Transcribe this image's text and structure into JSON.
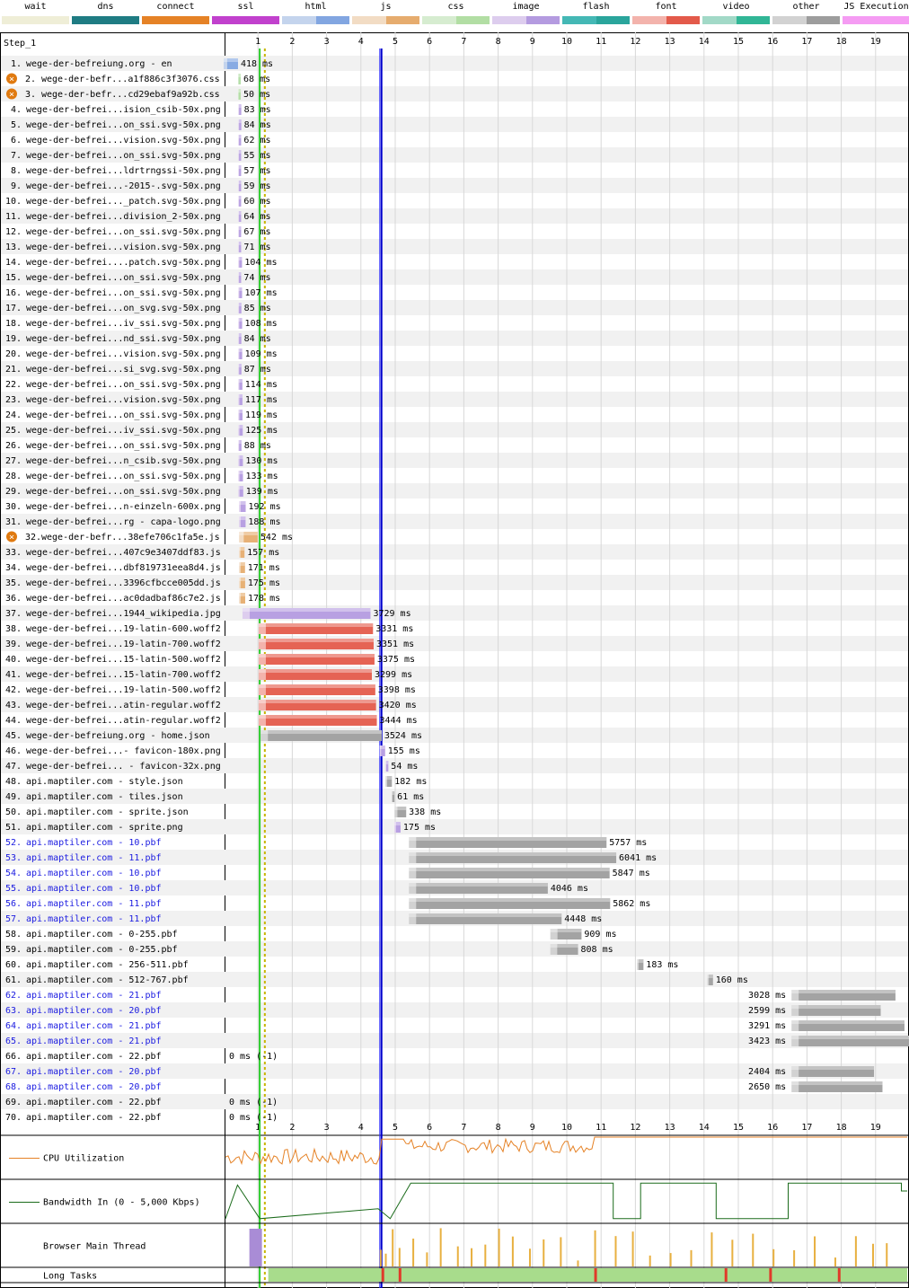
{
  "legend": [
    {
      "label": "wait",
      "color": "#efeed7",
      "color2": "#efeed7"
    },
    {
      "label": "dns",
      "color": "#1f7c83",
      "color2": "#1f7c83"
    },
    {
      "label": "connect",
      "color": "#e58226",
      "color2": "#e58226"
    },
    {
      "label": "ssl",
      "color": "#c141cd",
      "color2": "#c141cd"
    },
    {
      "label": "html",
      "color": "#c4d4ed",
      "color2": "#82a6e1"
    },
    {
      "label": "js",
      "color": "#f2dcc4",
      "color2": "#e6ac6e"
    },
    {
      "label": "css",
      "color": "#d6ecd0",
      "color2": "#b2dea4"
    },
    {
      "label": "image",
      "color": "#ddcdee",
      "color2": "#b49be0"
    },
    {
      "label": "flash",
      "color": "#44b8b5",
      "color2": "#2aa59c"
    },
    {
      "label": "font",
      "color": "#f3b3ac",
      "color2": "#e35a4a"
    },
    {
      "label": "video",
      "color": "#a2d9c7",
      "color2": "#31b696"
    },
    {
      "label": "other",
      "color": "#d2d2d2",
      "color2": "#9d9d9d"
    },
    {
      "label": "JS Execution",
      "color": "#f59cf3",
      "color2": "#f59cf3"
    }
  ],
  "step_label": "Step_1",
  "timeline_ticks": [
    "1",
    "2",
    "3",
    "4",
    "5",
    "6",
    "7",
    "8",
    "9",
    "10",
    "11",
    "12",
    "13",
    "14",
    "15",
    "16",
    "17",
    "18",
    "19"
  ],
  "requests": [
    {
      "num": "1.",
      "label": "wege-der-befreiung.org - en",
      "start": 0.0,
      "dur": 418,
      "type": "html",
      "ms": "418 ms"
    },
    {
      "num": "2.",
      "label": "wege-der-befr...a1f886c3f3076.css",
      "start": 0.42,
      "dur": 68,
      "type": "css",
      "ms": "68 ms",
      "warn": true
    },
    {
      "num": "3.",
      "label": "wege-der-befr...cd29ebaf9a92b.css",
      "start": 0.42,
      "dur": 50,
      "type": "css",
      "ms": "50 ms",
      "warn": true
    },
    {
      "num": "4.",
      "label": "wege-der-befrei...ision_csib-50x.png",
      "start": 0.43,
      "dur": 83,
      "type": "image",
      "ms": "83 ms"
    },
    {
      "num": "5.",
      "label": "wege-der-befrei...on_ssi.svg-50x.png",
      "start": 0.43,
      "dur": 84,
      "type": "image",
      "ms": "84 ms"
    },
    {
      "num": "6.",
      "label": "wege-der-befrei...vision.svg-50x.png",
      "start": 0.43,
      "dur": 62,
      "type": "image",
      "ms": "62 ms"
    },
    {
      "num": "7.",
      "label": "wege-der-befrei...on_ssi.svg-50x.png",
      "start": 0.43,
      "dur": 55,
      "type": "image",
      "ms": "55 ms"
    },
    {
      "num": "8.",
      "label": "wege-der-befrei...ldrtrngssi-50x.png",
      "start": 0.43,
      "dur": 57,
      "type": "image",
      "ms": "57 ms"
    },
    {
      "num": "9.",
      "label": "wege-der-befrei...-2015-.svg-50x.png",
      "start": 0.43,
      "dur": 59,
      "type": "image",
      "ms": "59 ms"
    },
    {
      "num": "10.",
      "label": "wege-der-befrei..._patch.svg-50x.png",
      "start": 0.43,
      "dur": 60,
      "type": "image",
      "ms": "60 ms"
    },
    {
      "num": "11.",
      "label": "wege-der-befrei...division_2-50x.png",
      "start": 0.43,
      "dur": 64,
      "type": "image",
      "ms": "64 ms"
    },
    {
      "num": "12.",
      "label": "wege-der-befrei...on_ssi.svg-50x.png",
      "start": 0.43,
      "dur": 67,
      "type": "image",
      "ms": "67 ms"
    },
    {
      "num": "13.",
      "label": "wege-der-befrei...vision.svg-50x.png",
      "start": 0.43,
      "dur": 71,
      "type": "image",
      "ms": "71 ms"
    },
    {
      "num": "14.",
      "label": "wege-der-befrei....patch.svg-50x.png",
      "start": 0.43,
      "dur": 104,
      "type": "image",
      "ms": "104 ms"
    },
    {
      "num": "15.",
      "label": "wege-der-befrei...on_ssi.svg-50x.png",
      "start": 0.43,
      "dur": 74,
      "type": "image",
      "ms": "74 ms"
    },
    {
      "num": "16.",
      "label": "wege-der-befrei...on_ssi.svg-50x.png",
      "start": 0.43,
      "dur": 107,
      "type": "image",
      "ms": "107 ms"
    },
    {
      "num": "17.",
      "label": "wege-der-befrei...on_svg.svg-50x.png",
      "start": 0.43,
      "dur": 85,
      "type": "image",
      "ms": "85 ms"
    },
    {
      "num": "18.",
      "label": "wege-der-befrei...iv_ssi.svg-50x.png",
      "start": 0.43,
      "dur": 108,
      "type": "image",
      "ms": "108 ms"
    },
    {
      "num": "19.",
      "label": "wege-der-befrei...nd_ssi.svg-50x.png",
      "start": 0.43,
      "dur": 84,
      "type": "image",
      "ms": "84 ms"
    },
    {
      "num": "20.",
      "label": "wege-der-befrei...vision.svg-50x.png",
      "start": 0.43,
      "dur": 109,
      "type": "image",
      "ms": "109 ms"
    },
    {
      "num": "21.",
      "label": "wege-der-befrei...si_svg.svg-50x.png",
      "start": 0.43,
      "dur": 87,
      "type": "image",
      "ms": "87 ms"
    },
    {
      "num": "22.",
      "label": "wege-der-befrei...on_ssi.svg-50x.png",
      "start": 0.43,
      "dur": 114,
      "type": "image",
      "ms": "114 ms"
    },
    {
      "num": "23.",
      "label": "wege-der-befrei...vision.svg-50x.png",
      "start": 0.43,
      "dur": 117,
      "type": "image",
      "ms": "117 ms"
    },
    {
      "num": "24.",
      "label": "wege-der-befrei...on_ssi.svg-50x.png",
      "start": 0.43,
      "dur": 119,
      "type": "image",
      "ms": "119 ms"
    },
    {
      "num": "25.",
      "label": "wege-der-befrei...iv_ssi.svg-50x.png",
      "start": 0.43,
      "dur": 125,
      "type": "image",
      "ms": "125 ms"
    },
    {
      "num": "26.",
      "label": "wege-der-befrei...on_ssi.svg-50x.png",
      "start": 0.43,
      "dur": 88,
      "type": "image",
      "ms": "88 ms"
    },
    {
      "num": "27.",
      "label": "wege-der-befrei...n_csib.svg-50x.png",
      "start": 0.43,
      "dur": 130,
      "type": "image",
      "ms": "130 ms"
    },
    {
      "num": "28.",
      "label": "wege-der-befrei...on_ssi.svg-50x.png",
      "start": 0.43,
      "dur": 133,
      "type": "image",
      "ms": "133 ms"
    },
    {
      "num": "29.",
      "label": "wege-der-befrei...on_ssi.svg-50x.png",
      "start": 0.43,
      "dur": 139,
      "type": "image",
      "ms": "139 ms"
    },
    {
      "num": "30.",
      "label": "wege-der-befrei...n-einzeln-600x.png",
      "start": 0.45,
      "dur": 192,
      "type": "image",
      "ms": "192 ms"
    },
    {
      "num": "31.",
      "label": "wege-der-befrei...rg - capa-logo.png",
      "start": 0.45,
      "dur": 188,
      "type": "image",
      "ms": "188 ms"
    },
    {
      "num": "32.",
      "label": "wege-der-befr...38efe706c1fa5e.js",
      "start": 0.45,
      "dur": 542,
      "type": "js",
      "ms": "542 ms",
      "warn": true
    },
    {
      "num": "33.",
      "label": "wege-der-befrei...407c9e3407ddf83.js",
      "start": 0.45,
      "dur": 157,
      "type": "js",
      "ms": "157 ms"
    },
    {
      "num": "34.",
      "label": "wege-der-befrei...dbf819731eea8d4.js",
      "start": 0.45,
      "dur": 171,
      "type": "js",
      "ms": "171 ms"
    },
    {
      "num": "35.",
      "label": "wege-der-befrei...3396cfbcce005dd.js",
      "start": 0.45,
      "dur": 175,
      "type": "js",
      "ms": "175 ms"
    },
    {
      "num": "36.",
      "label": "wege-der-befrei...ac0dadbaf86c7e2.js",
      "start": 0.45,
      "dur": 178,
      "type": "js",
      "ms": "178 ms"
    },
    {
      "num": "37.",
      "label": "wege-der-befrei...1944_wikipedia.jpg",
      "start": 0.55,
      "dur": 3729,
      "type": "image",
      "ms": "3729 ms"
    },
    {
      "num": "38.",
      "label": "wege-der-befrei...19-latin-600.woff2",
      "start": 1.02,
      "dur": 3331,
      "type": "font",
      "ms": "3331 ms"
    },
    {
      "num": "39.",
      "label": "wege-der-befrei...19-latin-700.woff2",
      "start": 1.02,
      "dur": 3351,
      "type": "font",
      "ms": "3351 ms"
    },
    {
      "num": "40.",
      "label": "wege-der-befrei...15-latin-500.woff2",
      "start": 1.02,
      "dur": 3375,
      "type": "font",
      "ms": "3375 ms"
    },
    {
      "num": "41.",
      "label": "wege-der-befrei...15-latin-700.woff2",
      "start": 1.02,
      "dur": 3299,
      "type": "font",
      "ms": "3299 ms"
    },
    {
      "num": "42.",
      "label": "wege-der-befrei...19-latin-500.woff2",
      "start": 1.02,
      "dur": 3398,
      "type": "font",
      "ms": "3398 ms"
    },
    {
      "num": "43.",
      "label": "wege-der-befrei...atin-regular.woff2",
      "start": 1.02,
      "dur": 3420,
      "type": "font",
      "ms": "3420 ms"
    },
    {
      "num": "44.",
      "label": "wege-der-befrei...atin-regular.woff2",
      "start": 1.02,
      "dur": 3444,
      "type": "font",
      "ms": "3444 ms"
    },
    {
      "num": "45.",
      "label": "wege-der-befreiung.org - home.json",
      "start": 1.08,
      "dur": 3524,
      "type": "other",
      "ms": "3524 ms"
    },
    {
      "num": "46.",
      "label": "wege-der-befrei...- favicon-180x.png",
      "start": 4.55,
      "dur": 155,
      "type": "image",
      "ms": "155 ms"
    },
    {
      "num": "47.",
      "label": "wege-der-befrei... - favicon-32x.png",
      "start": 4.72,
      "dur": 54,
      "type": "image",
      "ms": "54 ms"
    },
    {
      "num": "48.",
      "label": "api.maptiler.com - style.json",
      "start": 4.72,
      "dur": 182,
      "type": "other",
      "ms": "182 ms"
    },
    {
      "num": "49.",
      "label": "api.maptiler.com - tiles.json",
      "start": 4.9,
      "dur": 61,
      "type": "other",
      "ms": "61 ms"
    },
    {
      "num": "50.",
      "label": "api.maptiler.com - sprite.json",
      "start": 4.98,
      "dur": 338,
      "type": "other",
      "ms": "338 ms"
    },
    {
      "num": "51.",
      "label": "api.maptiler.com - sprite.png",
      "start": 4.98,
      "dur": 175,
      "type": "image",
      "ms": "175 ms"
    },
    {
      "num": "52.",
      "label": "api.maptiler.com - 10.pbf",
      "start": 5.4,
      "dur": 5757,
      "type": "other",
      "ms": "5757 ms",
      "blue": true
    },
    {
      "num": "53.",
      "label": "api.maptiler.com - 11.pbf",
      "start": 5.4,
      "dur": 6041,
      "type": "other",
      "ms": "6041 ms",
      "blue": true
    },
    {
      "num": "54.",
      "label": "api.maptiler.com - 10.pbf",
      "start": 5.4,
      "dur": 5847,
      "type": "other",
      "ms": "5847 ms",
      "blue": true
    },
    {
      "num": "55.",
      "label": "api.maptiler.com - 10.pbf",
      "start": 5.4,
      "dur": 4046,
      "type": "other",
      "ms": "4046 ms",
      "blue": true
    },
    {
      "num": "56.",
      "label": "api.maptiler.com - 11.pbf",
      "start": 5.4,
      "dur": 5862,
      "type": "other",
      "ms": "5862 ms",
      "blue": true
    },
    {
      "num": "57.",
      "label": "api.maptiler.com - 11.pbf",
      "start": 5.4,
      "dur": 4448,
      "type": "other",
      "ms": "4448 ms",
      "blue": true
    },
    {
      "num": "58.",
      "label": "api.maptiler.com - 0-255.pbf",
      "start": 9.52,
      "dur": 909,
      "type": "other",
      "ms": "909 ms"
    },
    {
      "num": "59.",
      "label": "api.maptiler.com - 0-255.pbf",
      "start": 9.52,
      "dur": 808,
      "type": "other",
      "ms": "808 ms"
    },
    {
      "num": "60.",
      "label": "api.maptiler.com - 256-511.pbf",
      "start": 12.05,
      "dur": 183,
      "type": "other",
      "ms": "183 ms"
    },
    {
      "num": "61.",
      "label": "api.maptiler.com - 512-767.pbf",
      "start": 14.1,
      "dur": 160,
      "type": "other",
      "ms": "160 ms"
    },
    {
      "num": "62.",
      "label": "api.maptiler.com - 21.pbf",
      "start": 16.55,
      "dur": 3028,
      "type": "other",
      "ms": "3028 ms",
      "blue": true,
      "msLeft": true
    },
    {
      "num": "63.",
      "label": "api.maptiler.com - 20.pbf",
      "start": 16.55,
      "dur": 2599,
      "type": "other",
      "ms": "2599 ms",
      "blue": true,
      "msLeft": true
    },
    {
      "num": "64.",
      "label": "api.maptiler.com - 21.pbf",
      "start": 16.55,
      "dur": 3291,
      "type": "other",
      "ms": "3291 ms",
      "blue": true,
      "msLeft": true
    },
    {
      "num": "65.",
      "label": "api.maptiler.com - 21.pbf",
      "start": 16.55,
      "dur": 3423,
      "type": "other",
      "ms": "3423 ms",
      "blue": true,
      "msLeft": true
    },
    {
      "num": "66.",
      "label": "api.maptiler.com - 22.pbf",
      "start": 0,
      "dur": 0,
      "type": "none",
      "ms": "0 ms (-1)"
    },
    {
      "num": "67.",
      "label": "api.maptiler.com - 20.pbf",
      "start": 16.55,
      "dur": 2404,
      "type": "other",
      "ms": "2404 ms",
      "blue": true,
      "msLeft": true
    },
    {
      "num": "68.",
      "label": "api.maptiler.com - 20.pbf",
      "start": 16.55,
      "dur": 2650,
      "type": "other",
      "ms": "2650 ms",
      "blue": true,
      "msLeft": true
    },
    {
      "num": "69.",
      "label": "api.maptiler.com - 22.pbf",
      "start": 0,
      "dur": 0,
      "type": "none",
      "ms": "0 ms (-1)"
    },
    {
      "num": "70.",
      "label": "api.maptiler.com - 22.pbf",
      "start": 0,
      "dur": 0,
      "type": "none",
      "ms": "0 ms (-1)"
    }
  ],
  "markers": {
    "start_render": 1.05,
    "dom_interactive": 1.2,
    "onload": 4.6,
    "dom_content_loaded": 4.55
  },
  "bottom_rows": [
    {
      "label": "CPU Utilization",
      "line_color": "#e58226"
    },
    {
      "label": "Bandwidth In (0 - 5,000 Kbps)",
      "line_color": "#1b6b1b"
    },
    {
      "label": "Browser Main Thread",
      "line_color": "#a98cd6"
    },
    {
      "label": "Long Tasks",
      "line_color": "#a8dc8c"
    }
  ]
}
